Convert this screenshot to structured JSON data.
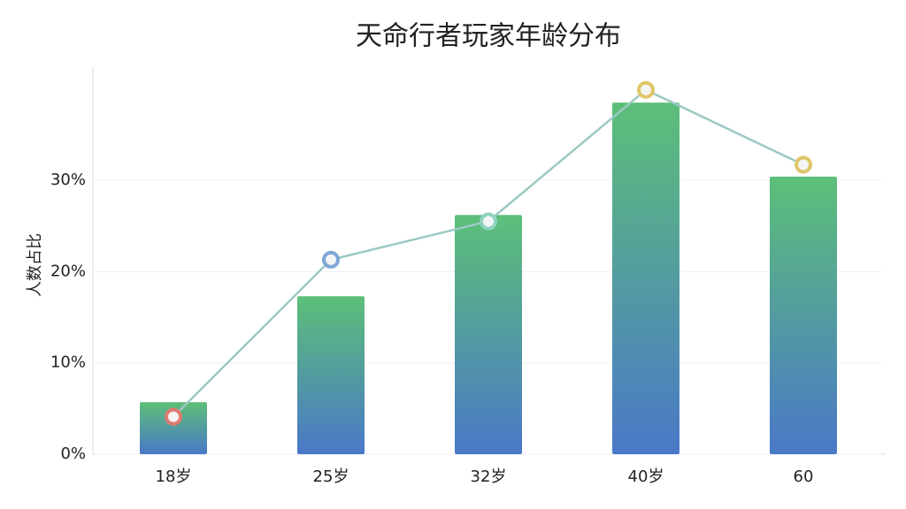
{
  "chart_data": {
    "type": "bar",
    "title": "天命行者玩家年龄分布",
    "y_label": "人数占比",
    "categories": [
      "18岁",
      "25岁",
      "32岁",
      "40岁",
      "60"
    ],
    "values": [
      5.7,
      17.3,
      26.2,
      38.5,
      30.4
    ],
    "color_top": "#5cbf78",
    "color_bottom": "#4a78c8",
    "line": {
      "color": "#9cc9c4",
      "values": [
        4.1,
        21.3,
        25.5,
        39.9,
        31.7
      ],
      "marker_colors": [
        "#e07a72",
        "#7fa6d6",
        "#8fd3c2",
        "#e0c66a",
        "#e0c66a"
      ]
    },
    "ylim": [
      0,
      42
    ],
    "yticks": [
      {
        "value": 0,
        "label": "0%"
      },
      {
        "value": 10,
        "label": "10%"
      },
      {
        "value": 20,
        "label": "20%"
      },
      {
        "value": 30,
        "label": "30%"
      }
    ],
    "grid": true
  }
}
